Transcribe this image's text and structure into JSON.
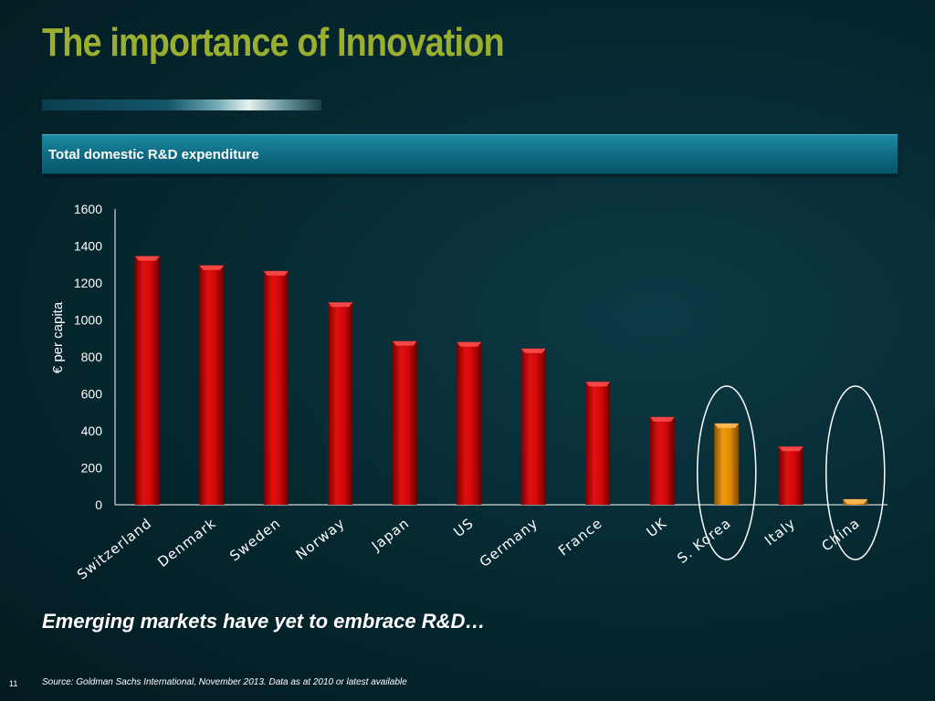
{
  "slide": {
    "title": "The importance of Innovation",
    "subtitle": "Total domestic R&D expenditure",
    "footnote": "Emerging markets have yet to embrace R&D…",
    "source": "Source: Goldman Sachs International, November 2013. Data as at 2010 or latest available",
    "page_number": "11"
  },
  "chart_data": {
    "type": "bar",
    "ylabel": "€ per capita",
    "ylim": [
      0,
      1600
    ],
    "yticks": [
      0,
      200,
      400,
      600,
      800,
      1000,
      1200,
      1400,
      1600
    ],
    "grid": false,
    "categories": [
      "Switzerland",
      "Denmark",
      "Sweden",
      "Norway",
      "Japan",
      "US",
      "Germany",
      "France",
      "UK",
      "S. Korea",
      "Italy",
      "China"
    ],
    "values": [
      1345,
      1295,
      1265,
      1095,
      885,
      880,
      845,
      665,
      475,
      440,
      315,
      30
    ],
    "highlighted": [
      "S. Korea",
      "China"
    ],
    "colors": {
      "default": "#c80000",
      "highlight": "#e08a00"
    }
  }
}
